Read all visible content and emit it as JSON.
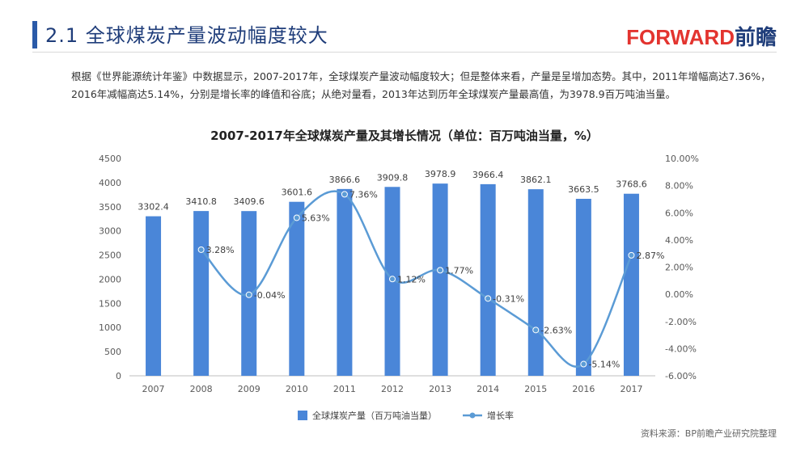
{
  "header": {
    "title": "2.1 全球煤炭产量波动幅度较大",
    "logo_text": "FORWARD",
    "logo_cn": "前瞻"
  },
  "intro": {
    "paragraph": "根据《世界能源统计年鉴》中数据显示，2007-2017年，全球煤炭产量波动幅度较大；但是整体来看，产量是呈增加态势。其中，2011年增幅高达7.36%，2016年减幅高达5.14%，分别是增长率的峰值和谷底；从绝对量看，2013年达到历年全球煤炭产量最高值，为3978.9百万吨油当量。"
  },
  "colors": {
    "bar": "#4a86d8",
    "line": "#5b9bd5",
    "title_bar": "#2a5aa8",
    "title_text": "#1f3d7a",
    "logo_accent": "#e3342f"
  },
  "chart_data": {
    "type": "bar",
    "title": "2007-2017年全球煤炭产量及其增长情况（单位：百万吨油当量，%）",
    "categories": [
      "2007",
      "2008",
      "2009",
      "2010",
      "2011",
      "2012",
      "2013",
      "2014",
      "2015",
      "2016",
      "2017"
    ],
    "series": [
      {
        "name": "全球煤炭产量（百万吨油当量）",
        "type": "bar",
        "axis": "left",
        "values": [
          3302.4,
          3410.8,
          3409.6,
          3601.6,
          3866.6,
          3909.8,
          3978.9,
          3966.4,
          3862.1,
          3663.5,
          3768.6
        ],
        "labels": [
          "3302.4",
          "3410.8",
          "3409.6",
          "3601.6",
          "3866.6",
          "3909.8",
          "3978.9",
          "3966.4",
          "3862.1",
          "3663.5",
          "3768.6"
        ]
      },
      {
        "name": "增长率",
        "type": "line",
        "axis": "right",
        "values": [
          null,
          3.28,
          -0.04,
          5.63,
          7.36,
          1.12,
          1.77,
          -0.31,
          -2.63,
          -5.14,
          2.87
        ],
        "labels": [
          "",
          "3.28%",
          "-0.04%",
          "5.63%",
          "7.36%",
          "1.12%",
          "1.77%",
          "-0.31%",
          "-2.63%",
          "-5.14%",
          "2.87%"
        ]
      }
    ],
    "y_left": {
      "min": 0,
      "max": 4500,
      "ticks": [
        0,
        500,
        1000,
        1500,
        2000,
        2500,
        3000,
        3500,
        4000,
        4500
      ],
      "tick_labels": [
        "0",
        "500",
        "1000",
        "1500",
        "2000",
        "2500",
        "3000",
        "3500",
        "4000",
        "4500"
      ]
    },
    "y_right": {
      "min": -6,
      "max": 10,
      "ticks": [
        -6,
        -4,
        -2,
        0,
        2,
        4,
        6,
        8,
        10
      ],
      "tick_labels": [
        "-6.00%",
        "-4.00%",
        "-2.00%",
        "0.00%",
        "2.00%",
        "4.00%",
        "6.00%",
        "8.00%",
        "10.00%"
      ]
    },
    "legend": [
      "全球煤炭产量（百万吨油当量）",
      "增长率"
    ],
    "legend_position": "bottom-center",
    "source": "资料来源：BP前瞻产业研究院整理"
  }
}
